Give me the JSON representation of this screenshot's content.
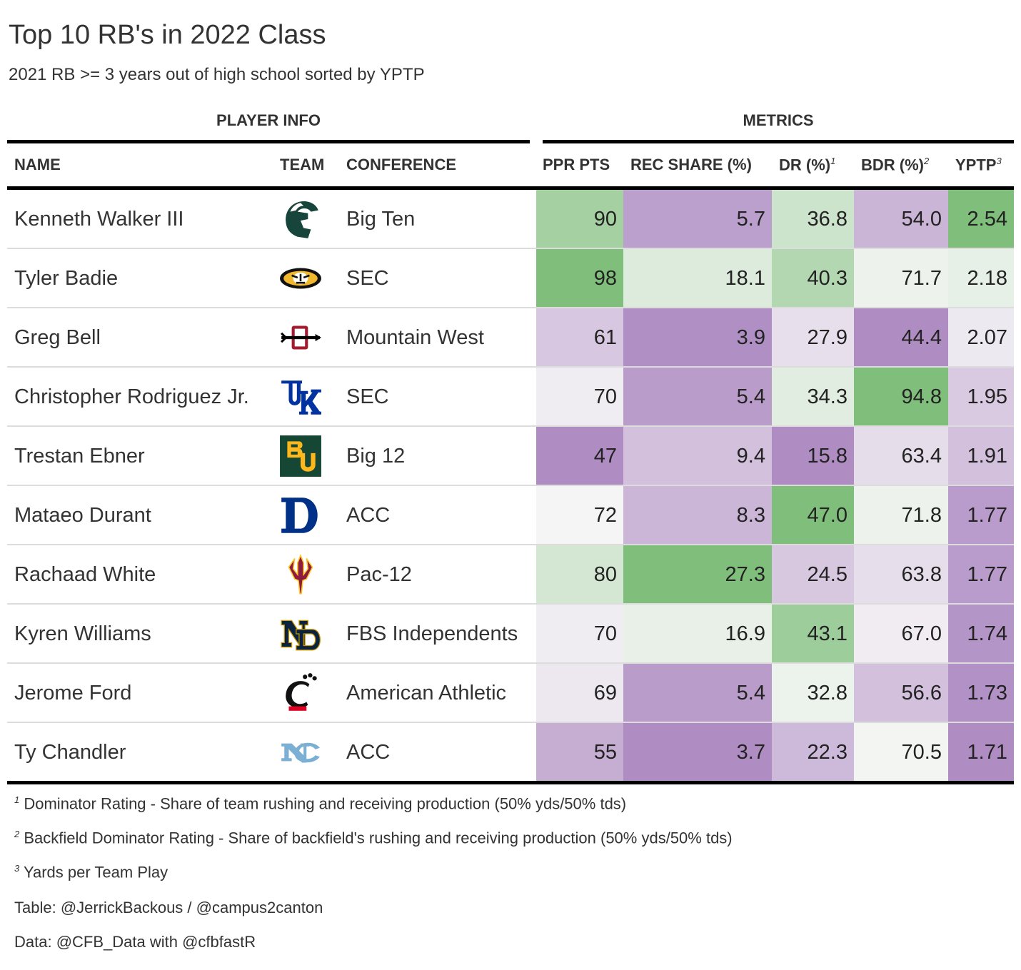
{
  "title": "Top 10 RB's in 2022 Class",
  "subtitle": "2021 RB >= 3 years out of high school sorted by YPTP",
  "spanners": {
    "player_info": "PLAYER INFO",
    "metrics": "METRICS"
  },
  "columns": {
    "name": "NAME",
    "team": "TEAM",
    "conference": "CONFERENCE",
    "ppr": "PPR PTS",
    "rec_share": "REC SHARE (%)",
    "dr": "DR (%)",
    "dr_mark": "1",
    "bdr": "BDR (%)",
    "bdr_mark": "2",
    "yptp": "YPTP",
    "yptp_mark": "3"
  },
  "colors": {
    "green_high": "#7fbf7b",
    "neutral": "#f7f7f7",
    "purple_high": "#af8dc3"
  },
  "chart_data": {
    "type": "table",
    "title": "Top 10 RB's in 2022 Class",
    "subtitle": "2021 RB >= 3 years out of high school sorted by YPTP",
    "rows": [
      {
        "name": "Kenneth Walker III",
        "team_icon": "michigan-state-spartan-icon",
        "conference": "Big Ten",
        "ppr": "90",
        "rec_share": "5.7",
        "dr": "36.8",
        "bdr": "54.0",
        "yptp": "2.54"
      },
      {
        "name": "Tyler Badie",
        "team_icon": "missouri-tiger-icon",
        "conference": "SEC",
        "ppr": "98",
        "rec_share": "18.1",
        "dr": "40.3",
        "bdr": "71.7",
        "yptp": "2.18"
      },
      {
        "name": "Greg Bell",
        "team_icon": "san-diego-state-sd-arrow-icon",
        "conference": "Mountain West",
        "ppr": "61",
        "rec_share": "3.9",
        "dr": "27.9",
        "bdr": "44.4",
        "yptp": "2.07"
      },
      {
        "name": "Christopher Rodriguez Jr.",
        "team_icon": "kentucky-uk-icon",
        "conference": "SEC",
        "ppr": "70",
        "rec_share": "5.4",
        "dr": "34.3",
        "bdr": "94.8",
        "yptp": "1.95"
      },
      {
        "name": "Trestan Ebner",
        "team_icon": "baylor-bu-icon",
        "conference": "Big 12",
        "ppr": "47",
        "rec_share": "9.4",
        "dr": "15.8",
        "bdr": "63.4",
        "yptp": "1.91"
      },
      {
        "name": "Mataeo Durant",
        "team_icon": "duke-d-icon",
        "conference": "ACC",
        "ppr": "72",
        "rec_share": "8.3",
        "dr": "47.0",
        "bdr": "71.8",
        "yptp": "1.77"
      },
      {
        "name": "Rachaad White",
        "team_icon": "arizona-state-pitchfork-icon",
        "conference": "Pac-12",
        "ppr": "80",
        "rec_share": "27.3",
        "dr": "24.5",
        "bdr": "63.8",
        "yptp": "1.77"
      },
      {
        "name": "Kyren Williams",
        "team_icon": "notre-dame-nd-icon",
        "conference": "FBS Independents",
        "ppr": "70",
        "rec_share": "16.9",
        "dr": "43.1",
        "bdr": "67.0",
        "yptp": "1.74"
      },
      {
        "name": "Jerome Ford",
        "team_icon": "cincinnati-c-paw-icon",
        "conference": "American Athletic",
        "ppr": "69",
        "rec_share": "5.4",
        "dr": "32.8",
        "bdr": "56.6",
        "yptp": "1.73"
      },
      {
        "name": "Ty Chandler",
        "team_icon": "north-carolina-nc-icon",
        "conference": "ACC",
        "ppr": "55",
        "rec_share": "3.7",
        "dr": "22.3",
        "bdr": "70.5",
        "yptp": "1.71"
      }
    ],
    "color_scale": {
      "ppr": {
        "min": 47,
        "max": 98
      },
      "rec_share": {
        "min": 3.7,
        "max": 27.3
      },
      "dr": {
        "min": 15.8,
        "max": 47.0
      },
      "bdr": {
        "min": 44.4,
        "max": 94.8
      },
      "yptp": {
        "min": 1.71,
        "max": 2.54
      }
    }
  },
  "footnotes": [
    {
      "mark": "1",
      "text": "Dominator Rating - Share of team rushing and receiving production (50% yds/50% tds)"
    },
    {
      "mark": "2",
      "text": "Backfield Dominator Rating - Share of backfield's rushing and receiving production (50% yds/50% tds)"
    },
    {
      "mark": "3",
      "text": "Yards per Team Play"
    }
  ],
  "source_notes": [
    "Table: @JerrickBackous / @campus2canton",
    "Data: @CFB_Data with @cfbfastR"
  ]
}
